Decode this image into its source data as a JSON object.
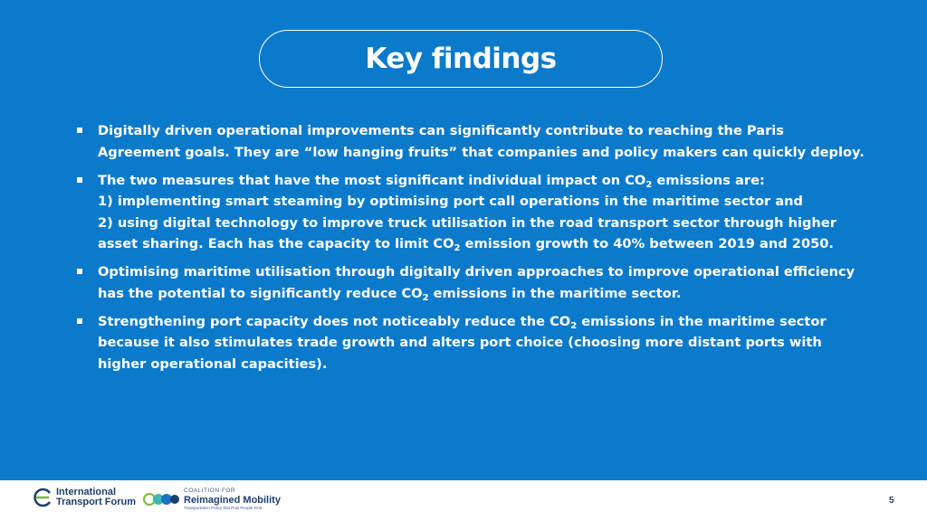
{
  "title": "Key findings",
  "bullets": [
    {
      "lines": [
        [
          {
            "t": "Digitally driven operational improvements can significantly contribute to reaching the Paris"
          }
        ],
        [
          {
            "t": "Agreement goals. They are “low hanging fruits” that companies and policy makers can quickly deploy."
          }
        ]
      ]
    },
    {
      "lines": [
        [
          {
            "t": "The two measures that have the most significant individual impact on CO"
          },
          {
            "sub": "2"
          },
          {
            "t": " emissions are:"
          }
        ],
        [
          {
            "t": "1) implementing smart steaming by optimising port call operations in the maritime sector and"
          }
        ],
        [
          {
            "t": "2) using digital technology to improve truck utilisation in the road transport sector through higher"
          }
        ],
        [
          {
            "t": "asset sharing. Each has the capacity to limit CO"
          },
          {
            "sub": "2"
          },
          {
            "t": " emission growth to 40% between 2019 and 2050."
          }
        ]
      ]
    },
    {
      "lines": [
        [
          {
            "t": "Optimising maritime utilisation through digitally driven approaches to improve operational efficiency"
          }
        ],
        [
          {
            "t": "has the potential to significantly reduce CO"
          },
          {
            "sub": "2"
          },
          {
            "t": " emissions in the maritime sector."
          }
        ]
      ]
    },
    {
      "lines": [
        [
          {
            "t": "Strengthening port capacity does not noticeably reduce the CO"
          },
          {
            "sub": "2"
          },
          {
            "t": " emissions in the maritime sector"
          }
        ],
        [
          {
            "t": "because it also stimulates trade growth and alters port choice (choosing more distant ports with"
          }
        ],
        [
          {
            "t": "higher operational capacities)."
          }
        ]
      ]
    }
  ],
  "footer": {
    "itf_line1": "International",
    "itf_line2": "Transport Forum",
    "crm_small": "COALITION FOR",
    "crm_big": "Reimagined Mobility",
    "crm_tag": "Transportation Policy that Puts People First",
    "page_number": "5"
  },
  "colors": {
    "background": "#0c7acb",
    "text": "#ffffff",
    "footer_text": "#1d3e6e"
  }
}
